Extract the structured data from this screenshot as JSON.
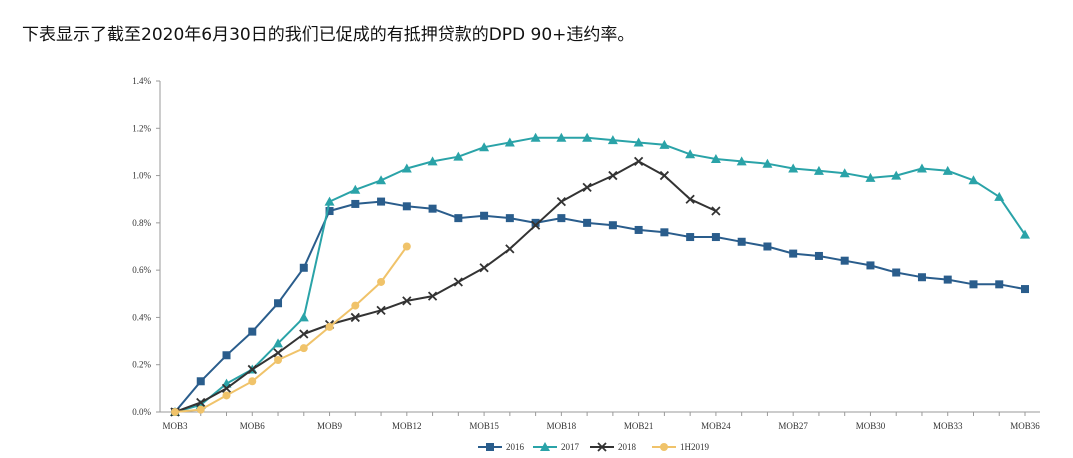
{
  "caption": "下表显示了截至2020年6月30日的我们已促成的有抵押贷款的DPD 90+违约率。",
  "chart_data": {
    "type": "line",
    "title": "",
    "xlabel": "",
    "ylabel": "",
    "ylim": [
      0,
      1.4
    ],
    "y_ticks": [
      "0.0%",
      "0.2%",
      "0.4%",
      "0.6%",
      "0.8%",
      "1.0%",
      "1.2%",
      "1.4%"
    ],
    "x_range": [
      3,
      36
    ],
    "x_ticks": [
      {
        "label": "MOB3",
        "mob": 3
      },
      {
        "label": "MOB6",
        "mob": 6
      },
      {
        "label": "MOB9",
        "mob": 9
      },
      {
        "label": "MOB12",
        "mob": 12
      },
      {
        "label": "MOB15",
        "mob": 15
      },
      {
        "label": "MOB18",
        "mob": 18
      },
      {
        "label": "MOB21",
        "mob": 21
      },
      {
        "label": "MOB24",
        "mob": 24
      },
      {
        "label": "MOB27",
        "mob": 27
      },
      {
        "label": "MOB30",
        "mob": 30
      },
      {
        "label": "MOB33",
        "mob": 33
      },
      {
        "label": "MOB36",
        "mob": 36
      }
    ],
    "legend_position": "bottom",
    "series": [
      {
        "name": "2016",
        "color": "#2a5d8c",
        "marker": "square",
        "points": [
          [
            3,
            0.0
          ],
          [
            4,
            0.13
          ],
          [
            5,
            0.24
          ],
          [
            6,
            0.34
          ],
          [
            7,
            0.46
          ],
          [
            8,
            0.61
          ],
          [
            9,
            0.85
          ],
          [
            10,
            0.88
          ],
          [
            11,
            0.89
          ],
          [
            12,
            0.87
          ],
          [
            13,
            0.86
          ],
          [
            14,
            0.82
          ],
          [
            15,
            0.83
          ],
          [
            16,
            0.82
          ],
          [
            17,
            0.8
          ],
          [
            18,
            0.82
          ],
          [
            19,
            0.8
          ],
          [
            20,
            0.79
          ],
          [
            21,
            0.77
          ],
          [
            22,
            0.76
          ],
          [
            23,
            0.74
          ],
          [
            24,
            0.74
          ],
          [
            25,
            0.72
          ],
          [
            26,
            0.7
          ],
          [
            27,
            0.67
          ],
          [
            28,
            0.66
          ],
          [
            29,
            0.64
          ],
          [
            30,
            0.62
          ],
          [
            31,
            0.59
          ],
          [
            32,
            0.57
          ],
          [
            33,
            0.56
          ],
          [
            34,
            0.54
          ],
          [
            35,
            0.54
          ],
          [
            36,
            0.52
          ]
        ]
      },
      {
        "name": "2017",
        "color": "#2aa3a8",
        "marker": "triangle",
        "points": [
          [
            3,
            0.0
          ],
          [
            4,
            0.03
          ],
          [
            5,
            0.12
          ],
          [
            6,
            0.18
          ],
          [
            7,
            0.29
          ],
          [
            8,
            0.4
          ],
          [
            9,
            0.89
          ],
          [
            10,
            0.94
          ],
          [
            11,
            0.98
          ],
          [
            12,
            1.03
          ],
          [
            13,
            1.06
          ],
          [
            14,
            1.08
          ],
          [
            15,
            1.12
          ],
          [
            16,
            1.14
          ],
          [
            17,
            1.16
          ],
          [
            18,
            1.16
          ],
          [
            19,
            1.16
          ],
          [
            20,
            1.15
          ],
          [
            21,
            1.14
          ],
          [
            22,
            1.13
          ],
          [
            23,
            1.09
          ],
          [
            24,
            1.07
          ],
          [
            25,
            1.06
          ],
          [
            26,
            1.05
          ],
          [
            27,
            1.03
          ],
          [
            28,
            1.02
          ],
          [
            29,
            1.01
          ],
          [
            30,
            0.99
          ],
          [
            31,
            1.0
          ],
          [
            32,
            1.03
          ],
          [
            33,
            1.02
          ],
          [
            34,
            0.98
          ],
          [
            35,
            0.91
          ],
          [
            36,
            0.75
          ]
        ]
      },
      {
        "name": "2018",
        "color": "#333333",
        "marker": "x",
        "points": [
          [
            3,
            0.0
          ],
          [
            4,
            0.04
          ],
          [
            5,
            0.1
          ],
          [
            6,
            0.18
          ],
          [
            7,
            0.25
          ],
          [
            8,
            0.33
          ],
          [
            9,
            0.37
          ],
          [
            10,
            0.4
          ],
          [
            11,
            0.43
          ],
          [
            12,
            0.47
          ],
          [
            13,
            0.49
          ],
          [
            14,
            0.55
          ],
          [
            15,
            0.61
          ],
          [
            16,
            0.69
          ],
          [
            17,
            0.79
          ],
          [
            18,
            0.89
          ],
          [
            19,
            0.95
          ],
          [
            20,
            1.0
          ],
          [
            21,
            1.06
          ],
          [
            22,
            1.0
          ],
          [
            23,
            0.9
          ],
          [
            24,
            0.85
          ]
        ]
      },
      {
        "name": "1H2019",
        "color": "#f0c36a",
        "marker": "circle",
        "points": [
          [
            3,
            0.0
          ],
          [
            4,
            0.01
          ],
          [
            5,
            0.07
          ],
          [
            6,
            0.13
          ],
          [
            7,
            0.22
          ],
          [
            8,
            0.27
          ],
          [
            9,
            0.36
          ],
          [
            10,
            0.45
          ],
          [
            11,
            0.55
          ],
          [
            12,
            0.7
          ]
        ]
      }
    ]
  }
}
